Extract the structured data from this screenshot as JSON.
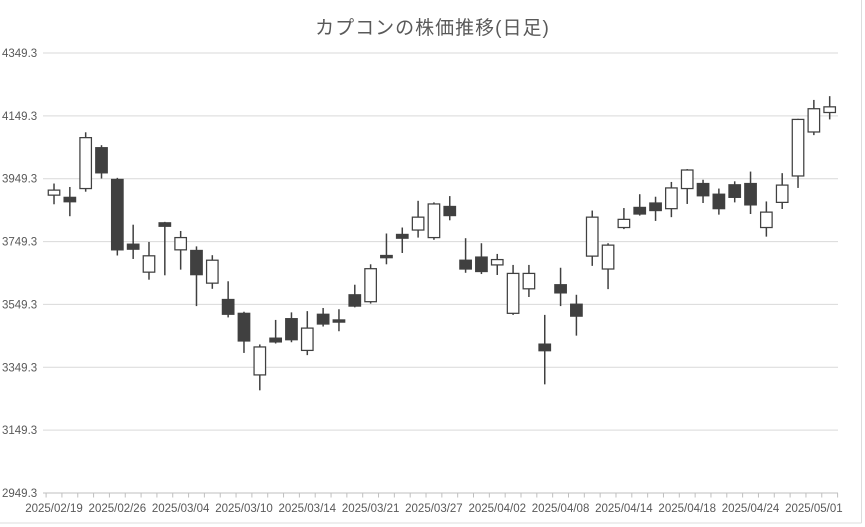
{
  "title": "カプコンの株価推移(日足)",
  "colors": {
    "text": "#595959",
    "gridline": "#d9d9d9",
    "axis_line": "#bfbfbf",
    "tick": "#bfbfbf",
    "chart_border": "#dcdcdc",
    "candle_up_fill": "#ffffff",
    "candle_down_fill": "#404040",
    "candle_border": "#404040"
  },
  "y_axis": {
    "tick_labels": [
      "4349.3",
      "4149.3",
      "3949.3",
      "3749.3",
      "3549.3",
      "3349.3",
      "3149.3",
      "2949.3"
    ],
    "min": 2949.3,
    "max": 4349.3
  },
  "x_axis": {
    "tick_labels": [
      "2025/02/19",
      "2025/02/26",
      "2025/03/04",
      "2025/03/10",
      "2025/03/14",
      "2025/03/21",
      "2025/03/27",
      "2025/04/02",
      "2025/04/08",
      "2025/04/14",
      "2025/04/18",
      "2025/04/24",
      "2025/05/01"
    ],
    "label_every_n_candles": 4
  },
  "chart_data": {
    "type": "candlestick",
    "title": "カプコンの株価推移(日足)",
    "ylim": [
      2949.3,
      4349.3
    ],
    "grid": "horizontal",
    "legend": "none",
    "dates": [
      "2025/02/19",
      "2025/02/20",
      "2025/02/21",
      "2025/02/25",
      "2025/02/26",
      "2025/02/27",
      "2025/02/28",
      "2025/03/03",
      "2025/03/04",
      "2025/03/05",
      "2025/03/06",
      "2025/03/07",
      "2025/03/10",
      "2025/03/11",
      "2025/03/12",
      "2025/03/13",
      "2025/03/14",
      "2025/03/17",
      "2025/03/18",
      "2025/03/19",
      "2025/03/21",
      "2025/03/24",
      "2025/03/25",
      "2025/03/26",
      "2025/03/27",
      "2025/03/28",
      "2025/03/31",
      "2025/04/01",
      "2025/04/02",
      "2025/04/03",
      "2025/04/04",
      "2025/04/07",
      "2025/04/08",
      "2025/04/09",
      "2025/04/10",
      "2025/04/11",
      "2025/04/14",
      "2025/04/15",
      "2025/04/16",
      "2025/04/17",
      "2025/04/18",
      "2025/04/21",
      "2025/04/22",
      "2025/04/23",
      "2025/04/24",
      "2025/04/25",
      "2025/04/28",
      "2025/04/30",
      "2025/05/01",
      "2025/05/02"
    ],
    "open": [
      3897,
      3890,
      3918,
      4048,
      3947,
      3741,
      3652,
      3809,
      3723,
      3721,
      3617,
      3565,
      3521,
      3325,
      3442,
      3504,
      3403,
      3518,
      3500,
      3580,
      3558,
      3705,
      3772,
      3786,
      3762,
      3861,
      3690,
      3700,
      3675,
      3521,
      3599,
      3423,
      3612,
      3550,
      3703,
      3662,
      3794,
      3858,
      3872,
      3854,
      3918,
      3934,
      3900,
      3930,
      3934,
      3794,
      3874,
      3958,
      4098,
      4160
    ],
    "high": [
      3934,
      3923,
      4097,
      4056,
      3952,
      3803,
      3748,
      3812,
      3783,
      3734,
      3706,
      3623,
      3526,
      3422,
      3500,
      3524,
      3528,
      3538,
      3534,
      3612,
      3677,
      3775,
      3794,
      3879,
      3874,
      3894,
      3760,
      3744,
      3710,
      3675,
      3675,
      3516,
      3666,
      3580,
      3848,
      3744,
      3856,
      3900,
      3892,
      3939,
      3980,
      3946,
      3918,
      3941,
      3972,
      3877,
      3967,
      4140,
      4200,
      4212
    ],
    "low": [
      3868,
      3830,
      3908,
      3950,
      3705,
      3694,
      3628,
      3642,
      3660,
      3544,
      3599,
      3508,
      3395,
      3276,
      3425,
      3429,
      3388,
      3479,
      3464,
      3540,
      3552,
      3677,
      3713,
      3762,
      3755,
      3817,
      3650,
      3646,
      3643,
      3516,
      3573,
      3295,
      3544,
      3450,
      3672,
      3598,
      3789,
      3832,
      3815,
      3827,
      3869,
      3872,
      3835,
      3874,
      3837,
      3765,
      3853,
      3920,
      4088,
      4138
    ],
    "close": [
      3913,
      3876,
      4080,
      3968,
      3723,
      3725,
      3704,
      3798,
      3762,
      3644,
      3690,
      3518,
      3433,
      3414,
      3430,
      3437,
      3474,
      3487,
      3493,
      3544,
      3663,
      3698,
      3760,
      3827,
      3869,
      3832,
      3662,
      3654,
      3692,
      3648,
      3648,
      3402,
      3586,
      3512,
      3827,
      3738,
      3820,
      3837,
      3848,
      3920,
      3977,
      3895,
      3854,
      3890,
      3866,
      3843,
      3929,
      4138,
      4172,
      4178
    ]
  }
}
